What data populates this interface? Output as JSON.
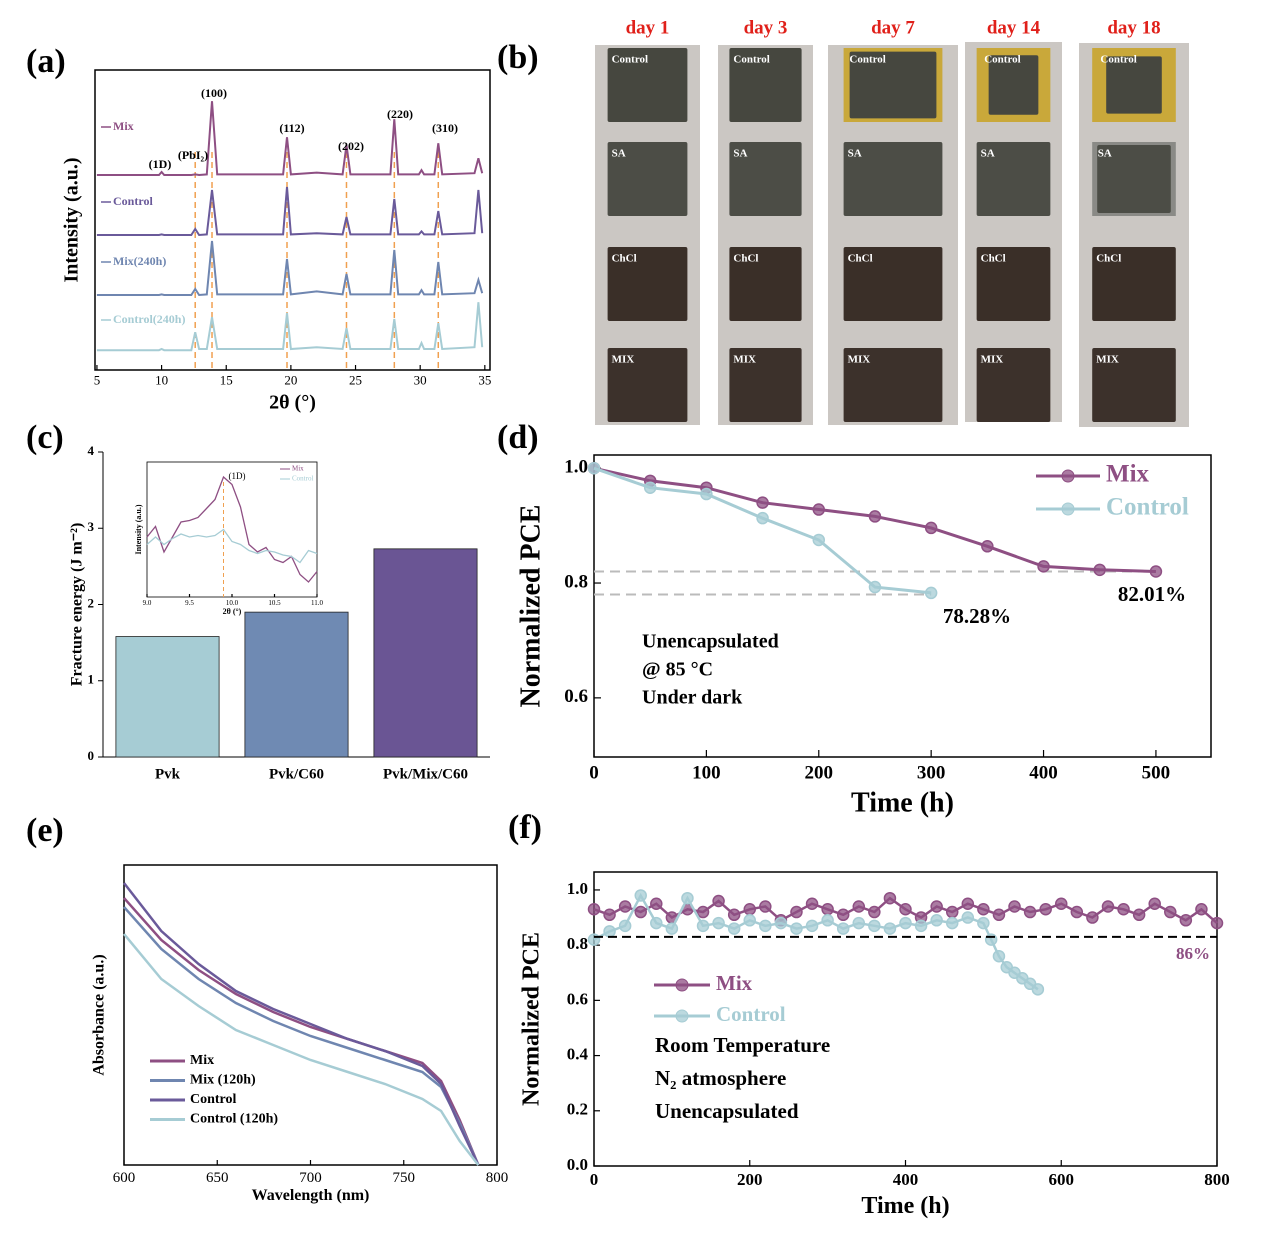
{
  "chart_data": [
    {
      "type": "line",
      "panel": "(a)",
      "x_label": "2θ (°)",
      "y_label": "Intensity (a.u.)",
      "xlim": [
        4.85,
        35.4
      ],
      "xticks": [
        5,
        10,
        15,
        20,
        25,
        30,
        35
      ],
      "ylim": [
        -0.33,
        4.67
      ],
      "x": [
        5,
        9.8,
        10,
        10.2,
        12.3,
        12.6,
        12.9,
        13.5,
        13.9,
        14.3,
        19.4,
        19.7,
        20,
        22,
        24,
        24.3,
        24.6,
        27.7,
        28,
        28.3,
        29.9,
        30.1,
        30.3,
        31.1,
        31.4,
        31.7,
        34.2,
        34.5,
        34.8
      ],
      "series": [
        {
          "name": "Mix",
          "color": "#8e4f83",
          "values": [
            2.92,
            2.92,
            2.97,
            2.92,
            2.92,
            2.93,
            2.92,
            2.93,
            4.15,
            2.93,
            2.93,
            3.55,
            2.93,
            2.96,
            2.93,
            3.42,
            2.93,
            2.93,
            3.85,
            2.93,
            2.93,
            3.0,
            2.93,
            2.93,
            3.45,
            2.93,
            2.95,
            3.2,
            2.95
          ]
        },
        {
          "name": "Control",
          "color": "#6a5a9a",
          "values": [
            1.92,
            1.92,
            1.93,
            1.92,
            1.92,
            2.02,
            1.92,
            1.93,
            2.67,
            1.93,
            1.93,
            2.72,
            1.93,
            1.95,
            1.93,
            2.22,
            1.93,
            1.93,
            2.52,
            1.93,
            1.93,
            1.98,
            1.93,
            1.93,
            2.32,
            1.93,
            1.95,
            2.67,
            1.95
          ]
        },
        {
          "name": "Mix(240h)",
          "color": "#6f86b0",
          "values": [
            0.92,
            0.92,
            0.93,
            0.92,
            0.92,
            1.02,
            0.92,
            0.93,
            1.82,
            0.93,
            0.93,
            1.52,
            0.93,
            0.98,
            0.93,
            1.27,
            0.93,
            0.93,
            1.67,
            0.93,
            0.93,
            1.0,
            0.93,
            0.93,
            1.47,
            0.93,
            0.95,
            1.17,
            0.95
          ]
        },
        {
          "name": "Control(240h)",
          "color": "#a6ccd4",
          "values": [
            0,
            0,
            0.02,
            0,
            0,
            0.3,
            0.02,
            0.02,
            0.55,
            0.02,
            0.02,
            0.62,
            0.02,
            0.05,
            0.02,
            0.37,
            0.02,
            0.02,
            0.52,
            0.02,
            0.02,
            0.12,
            0.02,
            0.02,
            0.45,
            0.02,
            0.05,
            0.8,
            0.05
          ]
        }
      ],
      "peak_lines": [
        12.6,
        13.9,
        19.7,
        24.3,
        28.0,
        31.4
      ],
      "peak_labels": [
        "(1D)",
        "(PbI₂)",
        "(100)",
        "(112)",
        "(202)",
        "(220)",
        "(310)"
      ]
    },
    {
      "type": "bar",
      "panel": "(c)",
      "y_label": "Fracture energy (J m⁻²)",
      "categories": [
        "Pvk",
        "Pvk/C60",
        "Pvk/Mix/C60"
      ],
      "values": [
        1.58,
        1.9,
        2.73
      ],
      "colors": [
        "#a6ccd4",
        "#6f8ab3",
        "#6a5594"
      ],
      "ylim": [
        0,
        4
      ],
      "yticks": [
        0,
        1,
        2,
        3,
        4
      ]
    },
    {
      "type": "line",
      "x_label": "2θ (°)",
      "y_label": "Intensity (a.u.)",
      "xlim": [
        9,
        11
      ],
      "xticks": [
        {
          "value": 9,
          "label": "9.0"
        },
        9.5,
        {
          "value": 10,
          "label": "10.0"
        },
        10.5,
        {
          "value": 11,
          "label": "11.0"
        }
      ],
      "ylim": [
        0.15,
        1.05
      ],
      "x": [
        9.0,
        9.1,
        9.2,
        9.3,
        9.4,
        9.5,
        9.6,
        9.7,
        9.8,
        9.9,
        10.0,
        10.1,
        10.2,
        10.3,
        10.4,
        10.5,
        10.6,
        10.7,
        10.8,
        10.9,
        11.0
      ],
      "series": [
        {
          "name": "Mix",
          "color": "#8e4f83",
          "values": [
            0.55,
            0.62,
            0.45,
            0.55,
            0.65,
            0.66,
            0.68,
            0.74,
            0.8,
            0.95,
            0.9,
            0.75,
            0.5,
            0.45,
            0.48,
            0.4,
            0.38,
            0.42,
            0.3,
            0.25,
            0.32
          ]
        },
        {
          "name": "Control",
          "color": "#a6ccd4",
          "values": [
            0.5,
            0.55,
            0.5,
            0.54,
            0.57,
            0.55,
            0.56,
            0.55,
            0.56,
            0.6,
            0.52,
            0.5,
            0.46,
            0.44,
            0.46,
            0.45,
            0.43,
            0.42,
            0.38,
            0.46,
            0.44
          ]
        }
      ],
      "peak_lines": [
        9.9
      ],
      "peak_labels": [
        "(1D)"
      ]
    },
    {
      "type": "line",
      "panel": "(d)",
      "x_label": "Time (h)",
      "y_label": "Normalized PCE",
      "xlim": [
        0,
        549
      ],
      "xticks": [
        0,
        100,
        200,
        300,
        400,
        500
      ],
      "ylim": [
        0.497,
        1.023
      ],
      "yticks": [
        0.6,
        0.8,
        {
          "value": 1.0,
          "label": "1.0"
        }
      ],
      "series": [
        {
          "name": "Mix",
          "color": "#8e4f83",
          "x": [
            0,
            50,
            100,
            150,
            200,
            250,
            300,
            350,
            400,
            450,
            500
          ],
          "values": [
            1.0,
            0.978,
            0.966,
            0.94,
            0.928,
            0.916,
            0.896,
            0.864,
            0.829,
            0.823,
            0.8201
          ]
        },
        {
          "name": "Control",
          "color": "#a6ccd4",
          "x": [
            0,
            50,
            100,
            150,
            200,
            250,
            300
          ],
          "values": [
            1.0,
            0.966,
            0.955,
            0.913,
            0.875,
            0.793,
            0.7828
          ]
        }
      ],
      "reference_lines": [
        0.82,
        0.78
      ],
      "annotations": [
        "78.28%",
        "82.01%"
      ],
      "notes": [
        "Unencapsulated",
        "@ 85 °C",
        "Under dark"
      ]
    },
    {
      "type": "line",
      "panel": "(e)",
      "x_label": "Wavelength (nm)",
      "y_label": "Absorbance (a.u.)",
      "xlim": [
        600,
        800
      ],
      "xticks": [
        600,
        650,
        700,
        750,
        800
      ],
      "ylim": [
        0,
        1
      ],
      "x": [
        600,
        620,
        640,
        660,
        680,
        700,
        720,
        740,
        760,
        770,
        780,
        790
      ],
      "series": [
        {
          "name": "Mix",
          "color": "#8e4f83",
          "values": [
            0.89,
            0.75,
            0.65,
            0.57,
            0.51,
            0.46,
            0.42,
            0.38,
            0.34,
            0.28,
            0.15,
            0.0
          ]
        },
        {
          "name": "Mix (120h)",
          "color": "#6f86b0",
          "values": [
            0.86,
            0.72,
            0.62,
            0.54,
            0.48,
            0.43,
            0.39,
            0.35,
            0.31,
            0.26,
            0.14,
            0.0
          ]
        },
        {
          "name": "Control",
          "color": "#6a5a9a",
          "values": [
            0.94,
            0.78,
            0.67,
            0.58,
            0.52,
            0.47,
            0.42,
            0.38,
            0.33,
            0.27,
            0.13,
            0.0
          ]
        },
        {
          "name": "Control (120h)",
          "color": "#a6ccd4",
          "values": [
            0.77,
            0.62,
            0.53,
            0.45,
            0.4,
            0.35,
            0.31,
            0.27,
            0.22,
            0.18,
            0.08,
            0.0
          ]
        }
      ]
    },
    {
      "type": "line",
      "panel": "(f)",
      "x_label": "Time (h)",
      "y_label": "Normalized PCE",
      "xlim": [
        0,
        800
      ],
      "xticks": [
        0,
        200,
        400,
        600,
        800
      ],
      "ylim": [
        0,
        1.065
      ],
      "yticks": [
        {
          "value": 0,
          "label": "0.0"
        },
        0.2,
        0.4,
        0.6,
        0.8,
        {
          "value": 1,
          "label": "1.0"
        }
      ],
      "series": [
        {
          "name": "Mix",
          "color": "#8e4f83",
          "x": [
            0,
            20,
            40,
            60,
            80,
            100,
            120,
            140,
            160,
            180,
            200,
            220,
            240,
            260,
            280,
            300,
            320,
            340,
            360,
            380,
            400,
            420,
            440,
            460,
            480,
            500,
            520,
            540,
            560,
            580,
            600,
            620,
            640,
            660,
            680,
            700,
            720,
            740,
            760,
            780,
            800
          ],
          "values": [
            0.93,
            0.91,
            0.94,
            0.92,
            0.95,
            0.9,
            0.93,
            0.92,
            0.96,
            0.91,
            0.93,
            0.94,
            0.89,
            0.92,
            0.95,
            0.93,
            0.91,
            0.94,
            0.92,
            0.97,
            0.93,
            0.9,
            0.94,
            0.92,
            0.95,
            0.93,
            0.91,
            0.94,
            0.92,
            0.93,
            0.95,
            0.92,
            0.9,
            0.94,
            0.93,
            0.91,
            0.95,
            0.92,
            0.89,
            0.93,
            0.88
          ]
        },
        {
          "name": "Control",
          "color": "#a6ccd4",
          "x": [
            0,
            20,
            40,
            60,
            80,
            100,
            120,
            140,
            160,
            180,
            200,
            220,
            240,
            260,
            280,
            300,
            320,
            340,
            360,
            380,
            400,
            420,
            440,
            460,
            480,
            500,
            510,
            520,
            530,
            540,
            550,
            560,
            570
          ],
          "values": [
            0.82,
            0.85,
            0.87,
            0.98,
            0.88,
            0.86,
            0.97,
            0.87,
            0.88,
            0.86,
            0.89,
            0.87,
            0.88,
            0.86,
            0.87,
            0.89,
            0.86,
            0.88,
            0.87,
            0.86,
            0.88,
            0.87,
            0.89,
            0.88,
            0.9,
            0.88,
            0.82,
            0.76,
            0.72,
            0.7,
            0.68,
            0.66,
            0.64
          ]
        }
      ],
      "reference_lines": [
        0.83
      ],
      "annotations": [
        "86%"
      ],
      "notes": [
        "Room Temperature",
        "N₂ atmosphere",
        "Unencapsulated"
      ]
    }
  ],
  "photo_panel": {
    "panel": "(b)",
    "days": [
      "day 1",
      "day 3",
      "day 7",
      "day 14",
      "day 18"
    ],
    "samples": [
      "Control",
      "SA",
      "ChCl",
      "MIX"
    ]
  }
}
